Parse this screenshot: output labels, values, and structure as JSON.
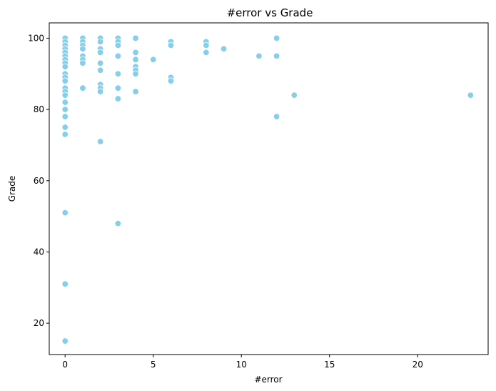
{
  "chart_data": {
    "type": "scatter",
    "title": "#error vs Grade",
    "xlabel": "#error",
    "ylabel": "Grade",
    "xlim": [
      -0.9,
      24.0
    ],
    "ylim": [
      11.2,
      104.3
    ],
    "xticks": [
      0,
      5,
      10,
      15,
      20
    ],
    "yticks": [
      20,
      40,
      60,
      80,
      100
    ],
    "grid": false,
    "legend": "none",
    "marker_color": "#87CEEB",
    "marker_edge_color": "#ffffff",
    "points": [
      {
        "x": 0,
        "y": 100
      },
      {
        "x": 0,
        "y": 99
      },
      {
        "x": 0,
        "y": 98
      },
      {
        "x": 0,
        "y": 97
      },
      {
        "x": 0,
        "y": 96
      },
      {
        "x": 0,
        "y": 95
      },
      {
        "x": 0,
        "y": 94
      },
      {
        "x": 0,
        "y": 93
      },
      {
        "x": 0,
        "y": 92
      },
      {
        "x": 0,
        "y": 90
      },
      {
        "x": 0,
        "y": 89
      },
      {
        "x": 0,
        "y": 88
      },
      {
        "x": 0,
        "y": 86
      },
      {
        "x": 0,
        "y": 85
      },
      {
        "x": 0,
        "y": 84
      },
      {
        "x": 0,
        "y": 82
      },
      {
        "x": 0,
        "y": 80
      },
      {
        "x": 0,
        "y": 78
      },
      {
        "x": 0,
        "y": 75
      },
      {
        "x": 0,
        "y": 73
      },
      {
        "x": 0,
        "y": 51
      },
      {
        "x": 0,
        "y": 31
      },
      {
        "x": 0,
        "y": 15
      },
      {
        "x": 1,
        "y": 100
      },
      {
        "x": 1,
        "y": 99
      },
      {
        "x": 1,
        "y": 98
      },
      {
        "x": 1,
        "y": 97
      },
      {
        "x": 1,
        "y": 95
      },
      {
        "x": 1,
        "y": 94
      },
      {
        "x": 1,
        "y": 93
      },
      {
        "x": 1,
        "y": 86
      },
      {
        "x": 2,
        "y": 100
      },
      {
        "x": 2,
        "y": 99
      },
      {
        "x": 2,
        "y": 97
      },
      {
        "x": 2,
        "y": 96
      },
      {
        "x": 2,
        "y": 93
      },
      {
        "x": 2,
        "y": 91
      },
      {
        "x": 2,
        "y": 87
      },
      {
        "x": 2,
        "y": 86
      },
      {
        "x": 2,
        "y": 85
      },
      {
        "x": 2,
        "y": 71
      },
      {
        "x": 3,
        "y": 100
      },
      {
        "x": 3,
        "y": 99
      },
      {
        "x": 3,
        "y": 98
      },
      {
        "x": 3,
        "y": 95
      },
      {
        "x": 3,
        "y": 90
      },
      {
        "x": 3,
        "y": 86
      },
      {
        "x": 3,
        "y": 83
      },
      {
        "x": 3,
        "y": 48
      },
      {
        "x": 4,
        "y": 100
      },
      {
        "x": 4,
        "y": 96
      },
      {
        "x": 4,
        "y": 94
      },
      {
        "x": 4,
        "y": 92
      },
      {
        "x": 4,
        "y": 91
      },
      {
        "x": 4,
        "y": 90
      },
      {
        "x": 4,
        "y": 85
      },
      {
        "x": 5,
        "y": 94
      },
      {
        "x": 6,
        "y": 99
      },
      {
        "x": 6,
        "y": 98
      },
      {
        "x": 6,
        "y": 89
      },
      {
        "x": 6,
        "y": 88
      },
      {
        "x": 8,
        "y": 99
      },
      {
        "x": 8,
        "y": 98
      },
      {
        "x": 8,
        "y": 96
      },
      {
        "x": 9,
        "y": 97
      },
      {
        "x": 11,
        "y": 95
      },
      {
        "x": 12,
        "y": 100
      },
      {
        "x": 12,
        "y": 95
      },
      {
        "x": 12,
        "y": 78
      },
      {
        "x": 13,
        "y": 84
      },
      {
        "x": 23,
        "y": 84
      }
    ]
  }
}
